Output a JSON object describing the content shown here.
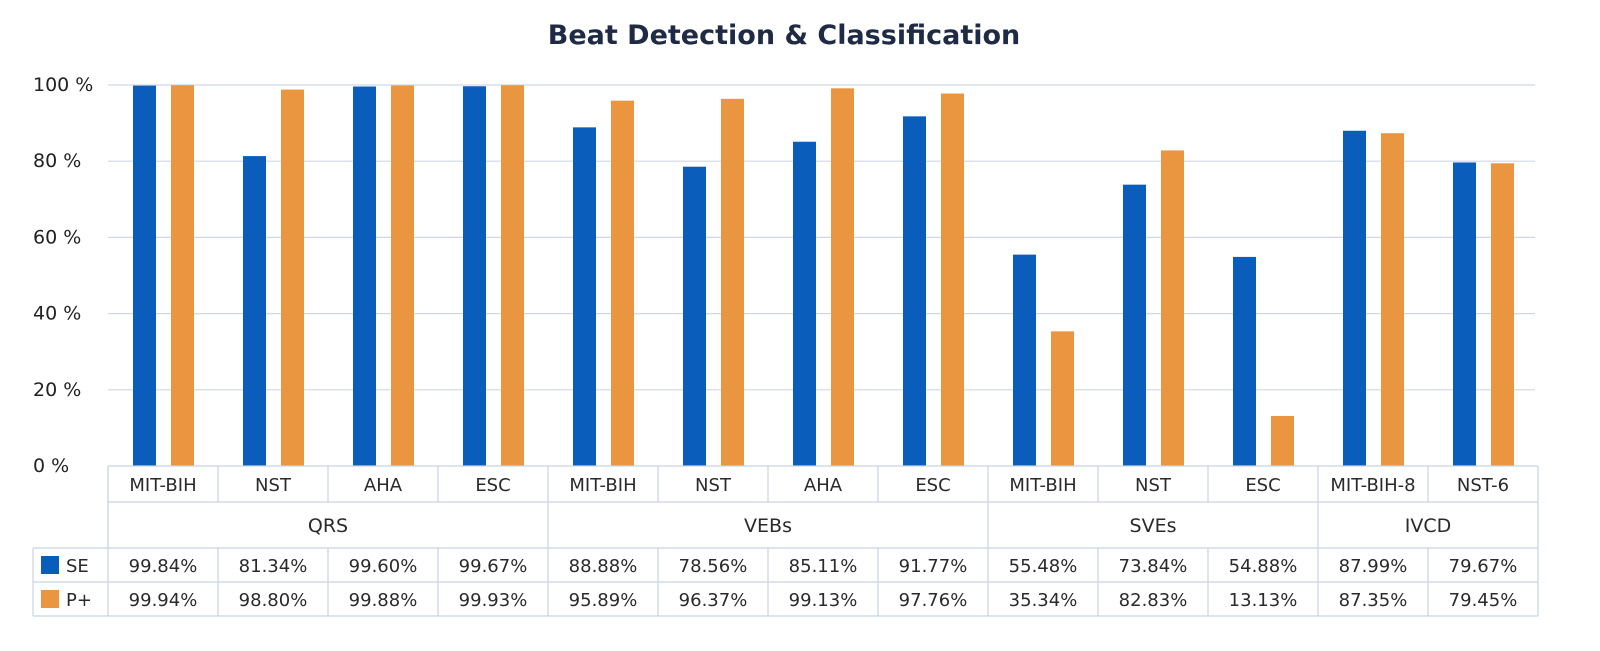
{
  "chart_data": {
    "type": "bar",
    "title": "Beat Detection & Classification",
    "xlabel": "",
    "ylabel": "",
    "ylim": [
      0,
      100
    ],
    "yticks": [
      "0 %",
      "20 %",
      "40 %",
      "60 %",
      "80 %",
      "100 %"
    ],
    "ytick_values": [
      0,
      20,
      40,
      60,
      80,
      100
    ],
    "grid": true,
    "legend_placement": "table-left",
    "categories": [
      "MIT-BIH",
      "NST",
      "AHA",
      "ESC",
      "MIT-BIH",
      "NST",
      "AHA",
      "ESC",
      "MIT-BIH",
      "NST",
      "ESC",
      "MIT-BIH-8",
      "NST-6"
    ],
    "groups": [
      {
        "label": "QRS",
        "span": 4
      },
      {
        "label": "VEBs",
        "span": 4
      },
      {
        "label": "SVEs",
        "span": 3
      },
      {
        "label": "IVCD",
        "span": 2
      }
    ],
    "series": [
      {
        "name": "SE",
        "color": "#0a5dbb",
        "values": [
          99.84,
          81.34,
          99.6,
          99.67,
          88.88,
          78.56,
          85.11,
          91.77,
          55.48,
          73.84,
          54.88,
          87.99,
          79.67
        ],
        "labels": [
          "99.84%",
          "81.34%",
          "99.60%",
          "99.67%",
          "88.88%",
          "78.56%",
          "85.11%",
          "91.77%",
          "55.48%",
          "73.84%",
          "54.88%",
          "87.99%",
          "79.67%"
        ]
      },
      {
        "name": "P+",
        "color": "#ea9540",
        "values": [
          99.94,
          98.8,
          99.88,
          99.93,
          95.89,
          96.37,
          99.13,
          97.76,
          35.34,
          82.83,
          13.13,
          87.35,
          79.45
        ],
        "labels": [
          "99.94%",
          "98.80%",
          "99.88%",
          "99.93%",
          "95.89%",
          "96.37%",
          "99.13%",
          "97.76%",
          "35.34%",
          "82.83%",
          "13.13%",
          "87.35%",
          "79.45%"
        ]
      }
    ]
  }
}
